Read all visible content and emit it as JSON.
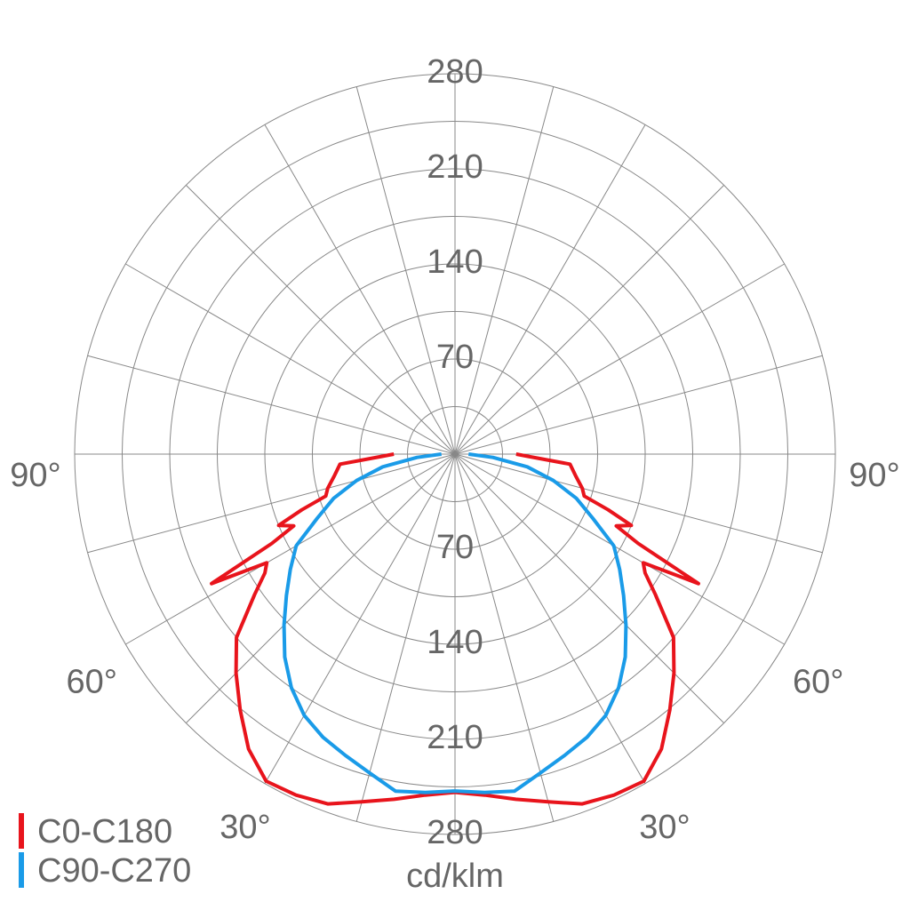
{
  "chart_data": {
    "type": "polar",
    "radial_label": "cd/klm",
    "rlim": [
      0,
      280
    ],
    "rticks": [
      70,
      140,
      210,
      280
    ],
    "rticks_minor": [
      35,
      105,
      175,
      245
    ],
    "angle_gridlines": [
      0,
      15,
      30,
      45,
      60,
      75,
      90,
      105,
      120,
      135,
      150,
      165
    ],
    "angle_ticks": [
      {
        "value": 90,
        "label": "90°"
      },
      {
        "value": 60,
        "label": "60°"
      },
      {
        "value": 30,
        "label": "30°"
      }
    ],
    "legend": "bottom-left",
    "series": [
      {
        "name": "C0-C180",
        "color": "#e8141c",
        "angles": [
          0,
          5,
          10,
          15,
          20,
          25,
          30,
          35,
          40,
          45,
          50,
          55,
          58,
          60,
          62,
          64,
          66,
          68,
          70,
          72,
          75,
          80,
          85,
          88,
          90
        ],
        "values": [
          249,
          252,
          258,
          265,
          274,
          277,
          278,
          265,
          246,
          228,
          210,
          180,
          165,
          160,
          203,
          150,
          130,
          140,
          120,
          100,
          97,
          90,
          85,
          55,
          45
        ]
      },
      {
        "name": "C90-C270",
        "color": "#1a9be8",
        "angles": [
          0,
          5,
          10,
          15,
          20,
          25,
          30,
          35,
          40,
          45,
          50,
          55,
          60,
          65,
          70,
          75,
          80,
          85,
          90
        ],
        "values": [
          248,
          250,
          252,
          243,
          236,
          230,
          222,
          210,
          195,
          178,
          162,
          148,
          135,
          112,
          95,
          75,
          54,
          28,
          10
        ]
      }
    ]
  }
}
